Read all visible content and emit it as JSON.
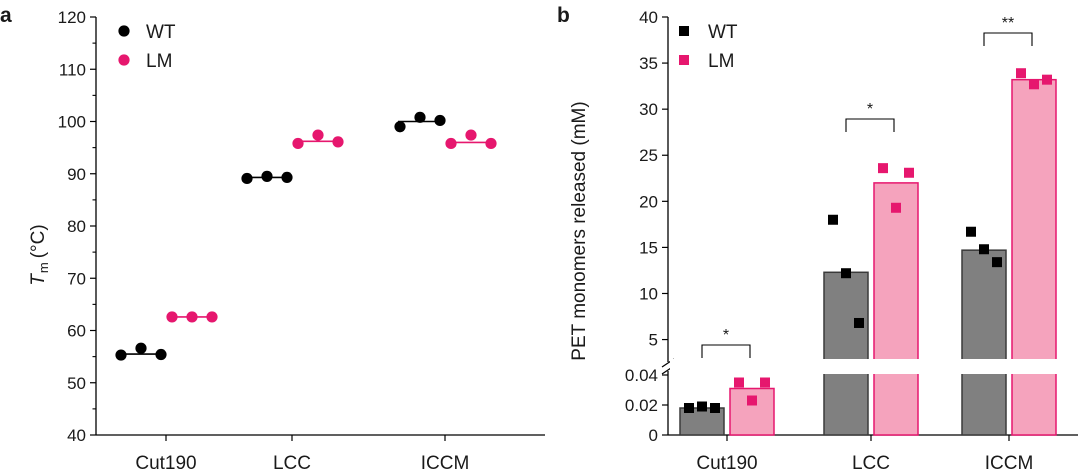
{
  "colors": {
    "wt": "#000000",
    "lm": "#e6176e",
    "wt_bar": "#808080",
    "lm_bar": "#f5a3bd",
    "lm_bar_edge": "#e6176e"
  },
  "chart_data": [
    {
      "panel": "a",
      "type": "scatter",
      "categories": [
        "Cut190",
        "LCC",
        "ICCM"
      ],
      "ylabel_main": "T",
      "ylabel_sub": "m",
      "ylabel_unit": "(°C)",
      "ylim": [
        40,
        120
      ],
      "yticks": [
        "40",
        "50",
        "60",
        "70",
        "80",
        "90",
        "100",
        "110",
        "120"
      ],
      "legend": [
        "WT",
        "LM"
      ],
      "series": [
        {
          "name": "WT",
          "color": "#000000",
          "points": [
            [
              55.3,
              56.6,
              55.4
            ],
            [
              89.1,
              89.5,
              89.3
            ],
            [
              99.0,
              100.8,
              100.2
            ]
          ],
          "means": [
            55.5,
            89.3,
            100.0
          ]
        },
        {
          "name": "LM",
          "color": "#e6176e",
          "points": [
            [
              62.6,
              62.6,
              62.6
            ],
            [
              95.8,
              97.4,
              96.1
            ],
            [
              95.8,
              97.4,
              95.8
            ]
          ],
          "means": [
            62.6,
            96.2,
            96.0
          ]
        }
      ]
    },
    {
      "panel": "b",
      "type": "bar",
      "categories": [
        "Cut190",
        "LCC",
        "ICCM"
      ],
      "ylabel": "PET monomers released (mM)",
      "ylim_lower": [
        0,
        0.04
      ],
      "ylim_upper": [
        3,
        40
      ],
      "yticks_lower": [
        "0",
        "0.02",
        "0.04"
      ],
      "yticks_upper": [
        "5",
        "10",
        "15",
        "20",
        "25",
        "30",
        "35",
        "40"
      ],
      "legend": [
        "WT",
        "LM"
      ],
      "series": [
        {
          "name": "WT",
          "means": [
            0.018,
            12.3,
            14.7
          ],
          "points": [
            [
              0.018,
              0.019,
              0.018
            ],
            [
              18.0,
              12.2,
              6.8
            ],
            [
              16.7,
              14.8,
              13.4
            ]
          ]
        },
        {
          "name": "LM",
          "means": [
            0.031,
            22.0,
            33.2
          ],
          "points": [
            [
              0.035,
              0.023,
              0.035
            ],
            [
              23.6,
              19.3,
              23.1
            ],
            [
              33.9,
              32.7,
              33.2
            ]
          ]
        }
      ],
      "significance": [
        "*",
        "*",
        "**"
      ]
    }
  ]
}
